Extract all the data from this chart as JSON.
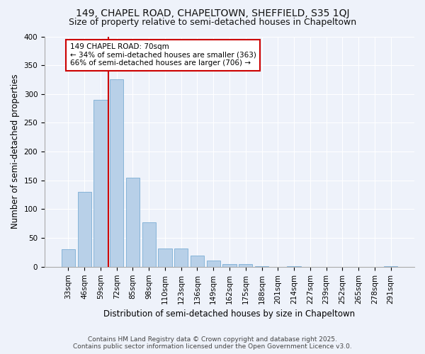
{
  "title": "149, CHAPEL ROAD, CHAPELTOWN, SHEFFIELD, S35 1QJ",
  "subtitle": "Size of property relative to semi-detached houses in Chapeltown",
  "xlabel": "Distribution of semi-detached houses by size in Chapeltown",
  "ylabel": "Number of semi-detached properties",
  "categories": [
    "33sqm",
    "46sqm",
    "59sqm",
    "72sqm",
    "85sqm",
    "98sqm",
    "110sqm",
    "123sqm",
    "136sqm",
    "149sqm",
    "162sqm",
    "175sqm",
    "188sqm",
    "201sqm",
    "214sqm",
    "227sqm",
    "239sqm",
    "252sqm",
    "265sqm",
    "278sqm",
    "291sqm"
  ],
  "values": [
    30,
    130,
    290,
    325,
    155,
    77,
    32,
    32,
    19,
    11,
    5,
    5,
    1,
    0,
    1,
    0,
    0,
    0,
    0,
    0,
    1
  ],
  "bar_color": "#b8d0e8",
  "bar_edge_color": "#7aadd4",
  "vline_label": "149 CHAPEL ROAD: 70sqm",
  "annotation_smaller": "← 34% of semi-detached houses are smaller (363)",
  "annotation_larger": "66% of semi-detached houses are larger (706) →",
  "annotation_box_color": "#ffffff",
  "annotation_box_edge": "#cc0000",
  "vline_color": "#cc0000",
  "background_color": "#eef2fa",
  "grid_color": "#ffffff",
  "footer1": "Contains HM Land Registry data © Crown copyright and database right 2025.",
  "footer2": "Contains public sector information licensed under the Open Government Licence v3.0.",
  "ylim": [
    0,
    400
  ],
  "yticks": [
    0,
    50,
    100,
    150,
    200,
    250,
    300,
    350,
    400
  ],
  "title_fontsize": 10,
  "subtitle_fontsize": 9,
  "xlabel_fontsize": 8.5,
  "ylabel_fontsize": 8.5,
  "tick_fontsize": 7.5,
  "annot_fontsize": 7.5,
  "footer_fontsize": 6.5
}
